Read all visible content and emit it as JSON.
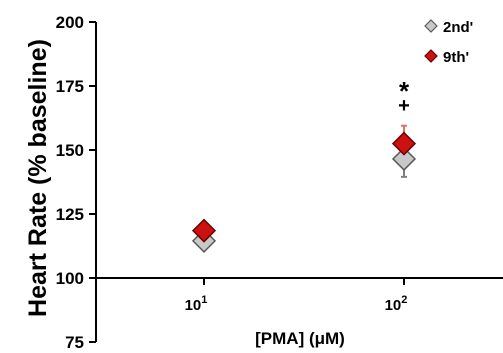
{
  "chart_data": {
    "type": "scatter",
    "xlabel": "[PMA] (μM)",
    "ylabel": "Heart Rate (% baseline)",
    "ylim": [
      75,
      200
    ],
    "yticks": [
      "75",
      "100",
      "125",
      "150",
      "175",
      "200"
    ],
    "x_axis_at": 100,
    "xscale": "log",
    "xticks": [
      {
        "base": "10",
        "exp": "1",
        "value": 10
      },
      {
        "base": "10",
        "exp": "2",
        "value": 100
      }
    ],
    "legend_position": "top-right",
    "series": [
      {
        "name": "2nd'",
        "color": "#c8c8c8",
        "stroke": "#5a5a5a",
        "error_color": "#808080",
        "points": [
          {
            "x": 10,
            "y": 114.5,
            "err": 1
          },
          {
            "x": 100,
            "y": 146.5,
            "err": 7
          }
        ]
      },
      {
        "name": "9th'",
        "color": "#cc1111",
        "stroke": "#6a0000",
        "error_color": "#e07070",
        "points": [
          {
            "x": 10,
            "y": 118.5,
            "err": 1
          },
          {
            "x": 100,
            "y": 152.5,
            "err": 7
          }
        ]
      }
    ],
    "annotations": [
      {
        "text": "*",
        "x": 100
      },
      {
        "text": "+",
        "x": 100
      }
    ]
  }
}
